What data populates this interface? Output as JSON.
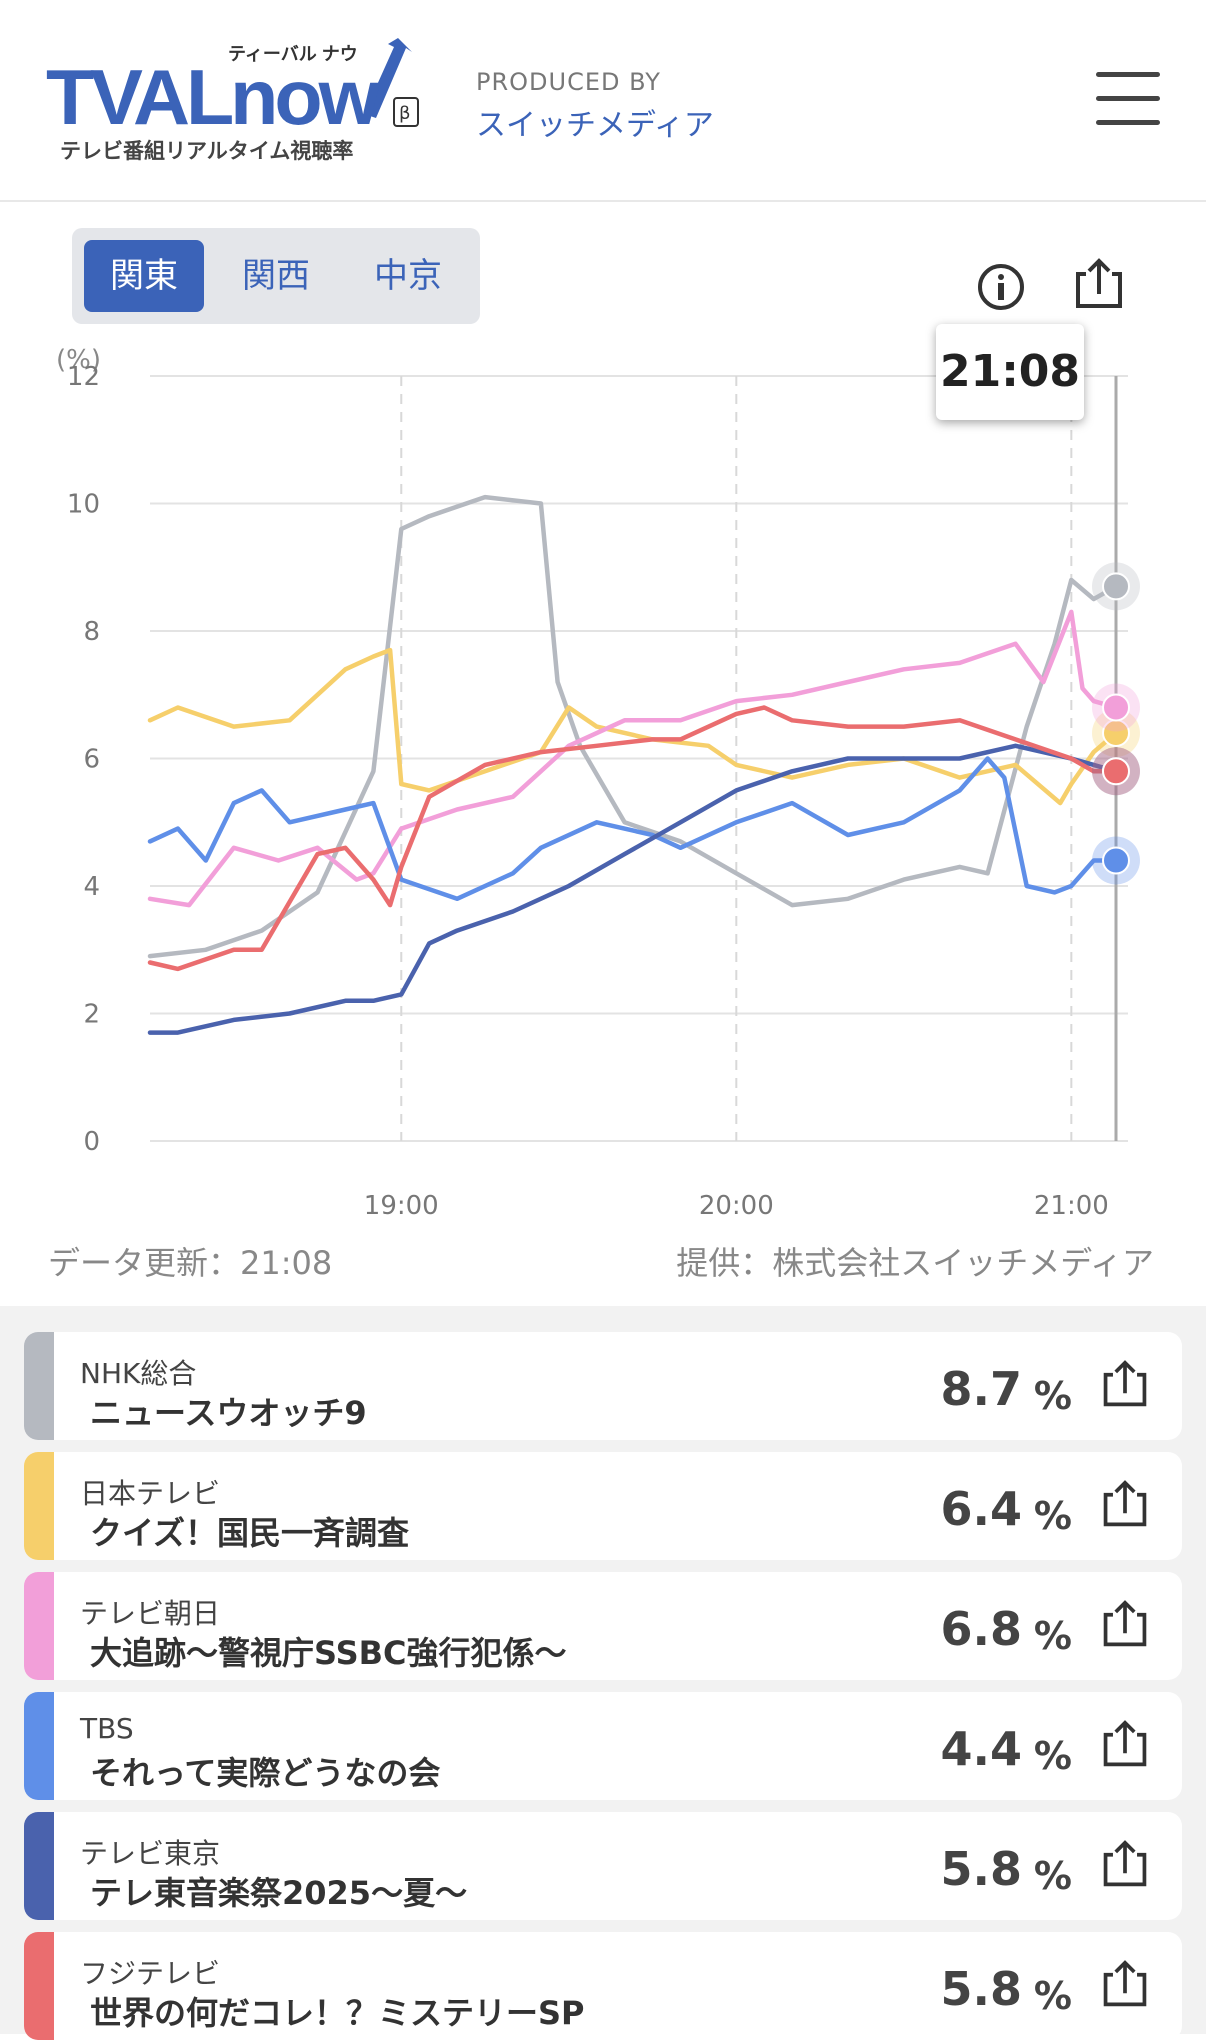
{
  "header": {
    "logo_text": "TVALnow",
    "logo_katakana": "ティーバル ナウ",
    "logo_beta": "β",
    "logo_tagline": "テレビ番組リアルタイム視聴率",
    "produced_by": "PRODUCED BY",
    "brand": "スイッチメディア"
  },
  "region_tabs": [
    {
      "label": "関東",
      "active": true
    },
    {
      "label": "関西",
      "active": false
    },
    {
      "label": "中京",
      "active": false
    }
  ],
  "tooltip_time": "21:08",
  "footer": {
    "update": "データ更新：21:08",
    "provider": "提供：株式会社スイッチメディア"
  },
  "chart_data": {
    "type": "line",
    "unit_label": "(%)",
    "ylim": [
      0,
      12
    ],
    "y_ticks": [
      "0",
      "2",
      "4",
      "6",
      "8",
      "10",
      "12"
    ],
    "x_range": [
      "18:15",
      "21:08"
    ],
    "x_ticks": [
      "19:00",
      "20:00",
      "21:00"
    ],
    "grid": true,
    "series": [
      {
        "name": "NHK総合",
        "color": "#b5b9c0",
        "x": [
          "18:15",
          "18:25",
          "18:35",
          "18:45",
          "18:55",
          "19:00",
          "19:05",
          "19:15",
          "19:25",
          "19:28",
          "19:32",
          "19:40",
          "19:50",
          "20:00",
          "20:10",
          "20:20",
          "20:30",
          "20:40",
          "20:45",
          "20:52",
          "20:57",
          "21:00",
          "21:04",
          "21:08"
        ],
        "y": [
          2.9,
          3.0,
          3.3,
          3.9,
          5.8,
          9.6,
          9.8,
          10.1,
          10.0,
          7.2,
          6.2,
          5.0,
          4.7,
          4.2,
          3.7,
          3.8,
          4.1,
          4.3,
          4.2,
          6.5,
          7.8,
          8.8,
          8.5,
          8.7
        ]
      },
      {
        "name": "日本テレビ",
        "color": "#f6cf6b",
        "x": [
          "18:15",
          "18:20",
          "18:30",
          "18:40",
          "18:50",
          "18:55",
          "18:58",
          "19:00",
          "19:05",
          "19:15",
          "19:25",
          "19:30",
          "19:35",
          "19:45",
          "19:55",
          "20:00",
          "20:10",
          "20:20",
          "20:30",
          "20:40",
          "20:50",
          "20:58",
          "21:00",
          "21:04",
          "21:08"
        ],
        "y": [
          6.6,
          6.8,
          6.5,
          6.6,
          7.4,
          7.6,
          7.7,
          5.6,
          5.5,
          5.8,
          6.1,
          6.8,
          6.5,
          6.3,
          6.2,
          5.9,
          5.7,
          5.9,
          6.0,
          5.7,
          5.9,
          5.3,
          5.6,
          6.1,
          6.4
        ]
      },
      {
        "name": "テレビ朝日",
        "color": "#f29fd9",
        "x": [
          "18:15",
          "18:22",
          "18:30",
          "18:38",
          "18:45",
          "18:52",
          "18:55",
          "19:00",
          "19:10",
          "19:20",
          "19:30",
          "19:40",
          "19:50",
          "20:00",
          "20:10",
          "20:20",
          "20:30",
          "20:40",
          "20:50",
          "20:55",
          "21:00",
          "21:02",
          "21:04",
          "21:08"
        ],
        "y": [
          3.8,
          3.7,
          4.6,
          4.4,
          4.6,
          4.1,
          4.2,
          4.9,
          5.2,
          5.4,
          6.2,
          6.6,
          6.6,
          6.9,
          7.0,
          7.2,
          7.4,
          7.5,
          7.8,
          7.2,
          8.3,
          7.1,
          6.9,
          6.8
        ]
      },
      {
        "name": "TBS",
        "color": "#5f8fe8",
        "x": [
          "18:15",
          "18:20",
          "18:25",
          "18:30",
          "18:35",
          "18:40",
          "18:50",
          "18:55",
          "19:00",
          "19:10",
          "19:20",
          "19:25",
          "19:35",
          "19:45",
          "19:50",
          "20:00",
          "20:10",
          "20:20",
          "20:30",
          "20:40",
          "20:45",
          "20:48",
          "20:52",
          "20:57",
          "21:00",
          "21:04",
          "21:08"
        ],
        "y": [
          4.7,
          4.9,
          4.4,
          5.3,
          5.5,
          5.0,
          5.2,
          5.3,
          4.1,
          3.8,
          4.2,
          4.6,
          5.0,
          4.8,
          4.6,
          5.0,
          5.3,
          4.8,
          5.0,
          5.5,
          6.0,
          5.7,
          4.0,
          3.9,
          4.0,
          4.4,
          4.4
        ]
      },
      {
        "name": "テレビ東京",
        "color": "#4a62ad",
        "x": [
          "18:15",
          "18:20",
          "18:30",
          "18:40",
          "18:50",
          "18:55",
          "19:00",
          "19:05",
          "19:10",
          "19:20",
          "19:30",
          "19:40",
          "19:50",
          "20:00",
          "20:10",
          "20:20",
          "20:30",
          "20:40",
          "20:50",
          "21:00",
          "21:04",
          "21:08"
        ],
        "y": [
          1.7,
          1.7,
          1.9,
          2.0,
          2.2,
          2.2,
          2.3,
          3.1,
          3.3,
          3.6,
          4.0,
          4.5,
          5.0,
          5.5,
          5.8,
          6.0,
          6.0,
          6.0,
          6.2,
          6.0,
          5.9,
          5.8
        ]
      },
      {
        "name": "フジテレビ",
        "color": "#ea6d6f",
        "x": [
          "18:15",
          "18:20",
          "18:30",
          "18:35",
          "18:45",
          "18:50",
          "18:55",
          "18:58",
          "19:00",
          "19:05",
          "19:15",
          "19:25",
          "19:35",
          "19:45",
          "19:50",
          "20:00",
          "20:05",
          "20:10",
          "20:20",
          "20:30",
          "20:40",
          "20:50",
          "21:00",
          "21:04",
          "21:08"
        ],
        "y": [
          2.8,
          2.7,
          3.0,
          3.0,
          4.5,
          4.6,
          4.1,
          3.7,
          4.3,
          5.4,
          5.9,
          6.1,
          6.2,
          6.3,
          6.3,
          6.7,
          6.8,
          6.6,
          6.5,
          6.5,
          6.6,
          6.3,
          6.0,
          5.8,
          5.8
        ]
      }
    ]
  },
  "channels": [
    {
      "channel": "NHK総合",
      "program": "ニュースウオッチ9",
      "rating": "8.7",
      "unit": "%",
      "color": "#b5b9c0"
    },
    {
      "channel": "日本テレビ",
      "program": "クイズ！国民一斉調査",
      "rating": "6.4",
      "unit": "%",
      "color": "#f6cf6b"
    },
    {
      "channel": "テレビ朝日",
      "program": "大追跡〜警視庁SSBC強行犯係〜",
      "rating": "6.8",
      "unit": "%",
      "color": "#f29fd9"
    },
    {
      "channel": "TBS",
      "program": "それって実際どうなの会",
      "rating": "4.4",
      "unit": "%",
      "color": "#5f8fe8"
    },
    {
      "channel": "テレビ東京",
      "program": "テレ東音楽祭2025〜夏〜",
      "rating": "5.8",
      "unit": "%",
      "color": "#4a62ad"
    },
    {
      "channel": "フジテレビ",
      "program": "世界の何だコレ！？ミステリーSP",
      "rating": "5.8",
      "unit": "%",
      "color": "#ea6d6f"
    }
  ]
}
